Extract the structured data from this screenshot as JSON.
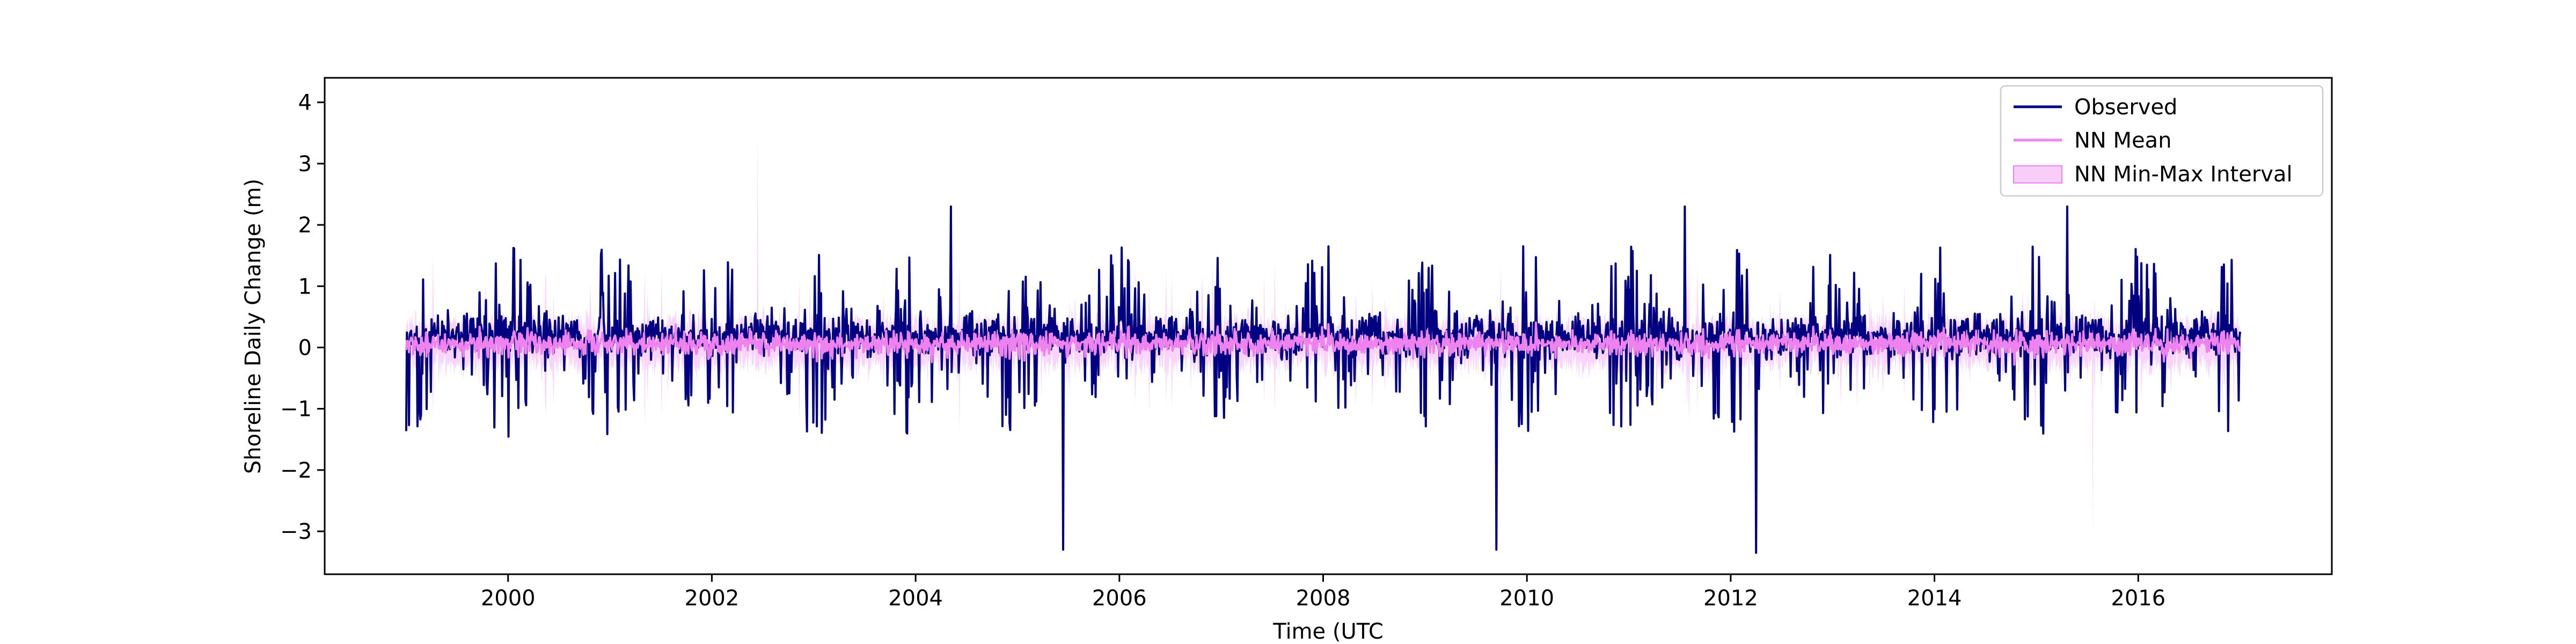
{
  "chart_data": {
    "type": "line",
    "title": "",
    "xlabel": "Time (UTC",
    "ylabel": "Shoreline Daily Change (m)",
    "xlim": [
      1998.2,
      2017.9
    ],
    "ylim": [
      -3.7,
      4.4
    ],
    "grid": false,
    "legend_placement": "top-right",
    "x_ticks": [
      2000,
      2002,
      2004,
      2006,
      2008,
      2010,
      2012,
      2014,
      2016
    ],
    "x_tick_labels": [
      "2000",
      "2002",
      "2004",
      "2006",
      "2008",
      "2010",
      "2012",
      "2014",
      "2016"
    ],
    "y_ticks": [
      -3,
      -2,
      -1,
      0,
      1,
      2,
      3,
      4
    ],
    "y_tick_labels": [
      "−3",
      "−2",
      "−1",
      "0",
      "1",
      "2",
      "3",
      "4"
    ],
    "x_range": [
      1999.0,
      2017.0
    ],
    "series": [
      {
        "name": "Observed",
        "color": "#000080",
        "style": "line"
      },
      {
        "name": "NN Mean",
        "color": "#ee82ee",
        "style": "line"
      },
      {
        "name": "NN Min-Max Interval",
        "color": "#ee82ee",
        "style": "band"
      }
    ],
    "notable_points": [
      {
        "x": 2002.45,
        "y": 3.55,
        "series": "NN Min-Max Interval",
        "kind": "max"
      },
      {
        "x": 2004.35,
        "y": 2.3,
        "series": "Observed",
        "kind": "max"
      },
      {
        "x": 2005.45,
        "y": -3.3,
        "series": "Observed",
        "kind": "min"
      },
      {
        "x": 2009.7,
        "y": -3.3,
        "series": "Observed",
        "kind": "min"
      },
      {
        "x": 2011.55,
        "y": 2.3,
        "series": "Observed",
        "kind": "max"
      },
      {
        "x": 2012.25,
        "y": -3.35,
        "series": "Observed",
        "kind": "min"
      },
      {
        "x": 2015.3,
        "y": 2.3,
        "series": "Observed",
        "kind": "max"
      },
      {
        "x": 2015.55,
        "y": -3.1,
        "series": "NN Min-Max Interval",
        "kind": "min"
      }
    ]
  }
}
